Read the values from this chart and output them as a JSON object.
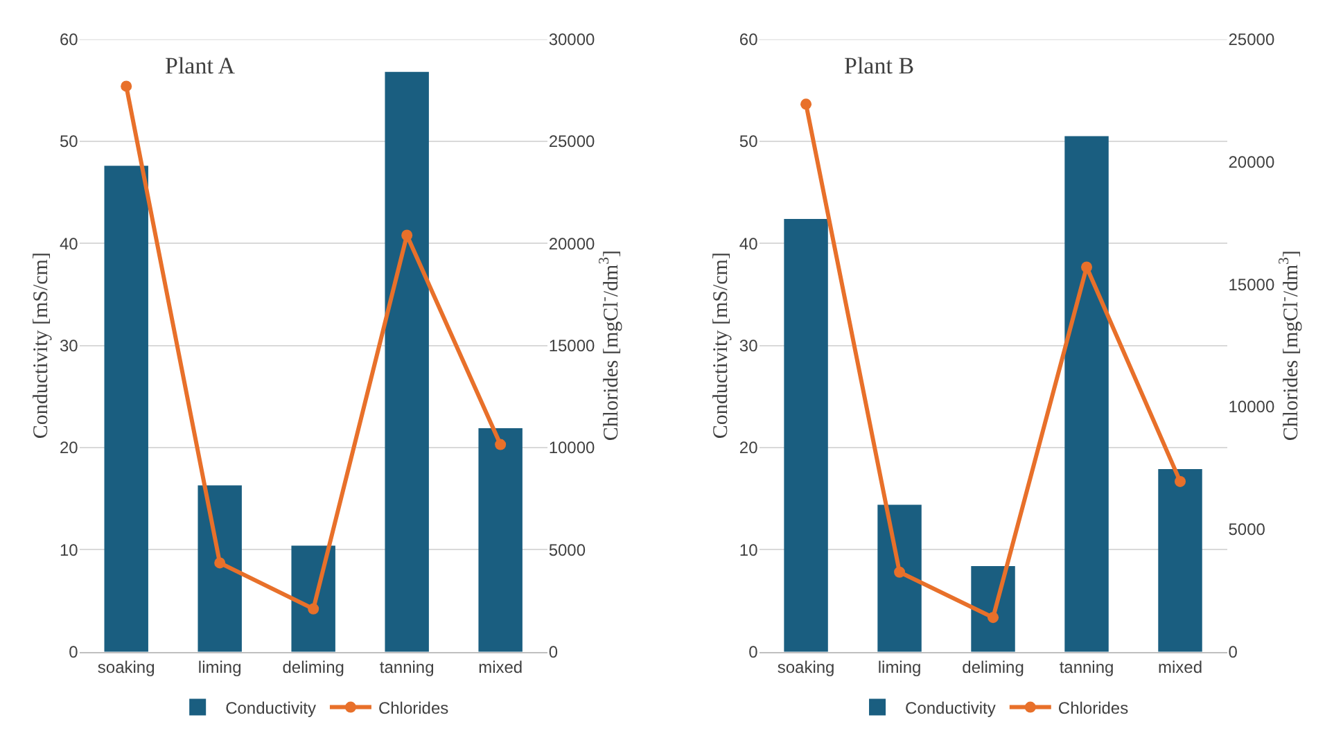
{
  "chart_data": [
    {
      "type": "bar",
      "title": "Plant A",
      "categories": [
        "soaking",
        "liming",
        "deliming",
        "tanning",
        "mixed"
      ],
      "ylabel": "Conductivity [mS/cm]",
      "y2label": "Chlorides [mgCl$^{-}$/dm$^{3}$]",
      "series": [
        {
          "name": "Conductivity",
          "color": "#1a5e80",
          "values": [
            47.6,
            16.3,
            10.4,
            56.8,
            21.9
          ]
        },
        {
          "name": "Chlorides",
          "type": "line",
          "axis": "y2",
          "color": "#e8702a",
          "marker": "circle",
          "values": [
            27700,
            4350,
            2100,
            20400,
            10150
          ]
        }
      ],
      "ylim": [
        0,
        60
      ],
      "yticks": [
        0,
        10,
        20,
        30,
        40,
        50,
        60
      ],
      "y2lim": [
        0,
        30000
      ],
      "y2ticks": [
        0,
        5000,
        10000,
        15000,
        20000,
        25000,
        30000
      ],
      "grid": "y",
      "legend": "bottom"
    },
    {
      "type": "bar",
      "title": "Plant B",
      "categories": [
        "soaking",
        "liming",
        "deliming",
        "tanning",
        "mixed"
      ],
      "ylabel": "Conductivity [mS/cm]",
      "y2label": "Chlorides [mgCl$^{-}$/dm$^{3}$]",
      "series": [
        {
          "name": "Conductivity",
          "color": "#1a5e80",
          "values": [
            42.4,
            14.4,
            8.4,
            50.5,
            17.9
          ]
        },
        {
          "name": "Chlorides",
          "type": "line",
          "axis": "y2",
          "color": "#e8702a",
          "marker": "circle",
          "values": [
            22350,
            3250,
            1400,
            15700,
            6950
          ]
        }
      ],
      "ylim": [
        0,
        60
      ],
      "yticks": [
        0,
        10,
        20,
        30,
        40,
        50,
        60
      ],
      "y2lim": [
        0,
        25000
      ],
      "y2ticks": [
        0,
        5000,
        10000,
        15000,
        20000,
        25000
      ],
      "grid": "y",
      "legend": "bottom"
    }
  ]
}
